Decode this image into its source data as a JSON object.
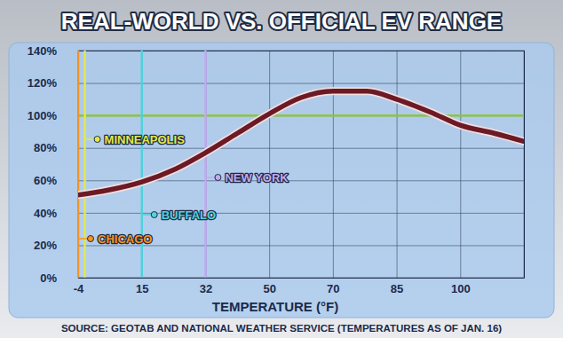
{
  "chart_data": {
    "type": "line",
    "title": "REAL-WORLD VS. OFFICIAL EV RANGE",
    "x_label": "TEMPERATURE (°F)",
    "source": "SOURCE: GEOTAB AND NATIONAL WEATHER SERVICE (TEMPERATURES AS OF JAN. 16)",
    "x": [
      -4,
      5,
      15,
      24,
      32,
      41,
      50,
      60,
      70,
      78,
      85,
      93,
      100,
      108,
      115
    ],
    "values": [
      51,
      54,
      59,
      67,
      77,
      89,
      101,
      111,
      115,
      115,
      110,
      102,
      94,
      89,
      84
    ],
    "color": "#6b1a26",
    "xlim": [
      -4,
      115
    ],
    "xticks": [
      -4,
      15,
      32,
      50,
      70,
      85,
      100
    ],
    "ylim": [
      0,
      140
    ],
    "yticks": [
      {
        "value": 0,
        "label": "0%"
      },
      {
        "value": 20,
        "label": "20%"
      },
      {
        "value": 40,
        "label": "40%"
      },
      {
        "value": 60,
        "label": "60%"
      },
      {
        "value": 80,
        "label": "80%"
      },
      {
        "value": 100,
        "label": "100%"
      },
      {
        "value": 120,
        "label": "120%"
      },
      {
        "value": 140,
        "label": "140%"
      }
    ],
    "grid": true,
    "hline": {
      "value": 100,
      "color": "#8dc63f"
    },
    "annotations": [
      {
        "text": "MINNEAPOLIS",
        "x": -2,
        "color": "#e4e84a"
      },
      {
        "text": "NEW YORK",
        "x": 32,
        "color": "#c2a9f0"
      },
      {
        "text": "BUFFALO",
        "x": 15,
        "color": "#4fd3dc"
      },
      {
        "text": "CHICAGO",
        "x": -4,
        "color": "#f7941d"
      }
    ]
  }
}
